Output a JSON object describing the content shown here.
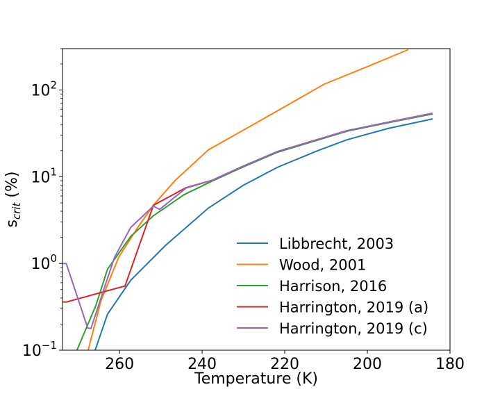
{
  "chart_data": {
    "type": "line",
    "xlabel": "Temperature (K)",
    "ylabel_main": "s",
    "ylabel_sub": "crit",
    "ylabel_unit": " (%)",
    "xlim": [
      273.8,
      180
    ],
    "ylim": [
      0.1,
      300
    ],
    "yscale": "log",
    "x_ticks": [
      260,
      240,
      220,
      200,
      180
    ],
    "y_ticks": [
      {
        "value": 0.1,
        "base": "10",
        "exp": "−1"
      },
      {
        "value": 1,
        "base": "10",
        "exp": "0"
      },
      {
        "value": 10,
        "base": "10",
        "exp": "1"
      },
      {
        "value": 100,
        "base": "10",
        "exp": "2"
      }
    ],
    "grid": false,
    "legend_position": "lower-right",
    "series": [
      {
        "name": "Libbrecht, 2003",
        "color": "#1f77b4",
        "x": [
          265.9,
          262.9,
          257.3,
          248.9,
          238.5,
          230,
          221.7,
          212,
          204.9,
          195,
          184.2
        ],
        "y": [
          0.1,
          0.26,
          0.64,
          1.61,
          4.35,
          8.0,
          12.9,
          20,
          26.7,
          36,
          46.5
        ]
      },
      {
        "name": "Wood, 2001",
        "color": "#ff7f0e",
        "x": [
          267.6,
          264.5,
          260.2,
          255.6,
          251.8,
          246.7,
          238.5,
          227.2,
          210.4,
          199.3,
          190.1
        ],
        "y": [
          0.1,
          0.37,
          1.18,
          2.6,
          4.7,
          8.9,
          20.4,
          41,
          117,
          192,
          292
        ]
      },
      {
        "name": "Harrison, 2016",
        "color": "#2ca02c",
        "x": [
          270.3,
          265.7,
          262.9,
          257.3,
          251.8,
          244.4,
          237.6,
          230,
          221.7,
          204.9,
          195,
          184.2
        ],
        "y": [
          0.1,
          0.33,
          0.86,
          2.05,
          3.55,
          6.2,
          8.9,
          13,
          19.2,
          33.5,
          42,
          53
        ]
      },
      {
        "name": "Harrington, 2019 (a)",
        "color": "#d62728",
        "x": [
          273.8,
          272.8,
          259.0,
          258.7,
          251.8,
          243.9,
          237.6,
          230,
          221.7,
          204.9,
          195,
          184.2
        ],
        "y": [
          0.36,
          0.36,
          0.545,
          0.545,
          4.68,
          7.5,
          9.1,
          13.3,
          19.6,
          34,
          42.5,
          54
        ]
      },
      {
        "name": "Harrington, 2019 (c)",
        "color": "#9467bd",
        "x": [
          273.8,
          272.9,
          267.7,
          266.9,
          264.0,
          261.2,
          257.3,
          251.8,
          250.3,
          243.9,
          237.6,
          230,
          221.7,
          204.9,
          195,
          184.2
        ],
        "y": [
          1.0,
          1.0,
          0.18,
          0.178,
          0.47,
          1.18,
          2.6,
          4.6,
          4.2,
          7.4,
          9.1,
          13.3,
          19.6,
          34,
          42.5,
          54
        ]
      }
    ]
  }
}
